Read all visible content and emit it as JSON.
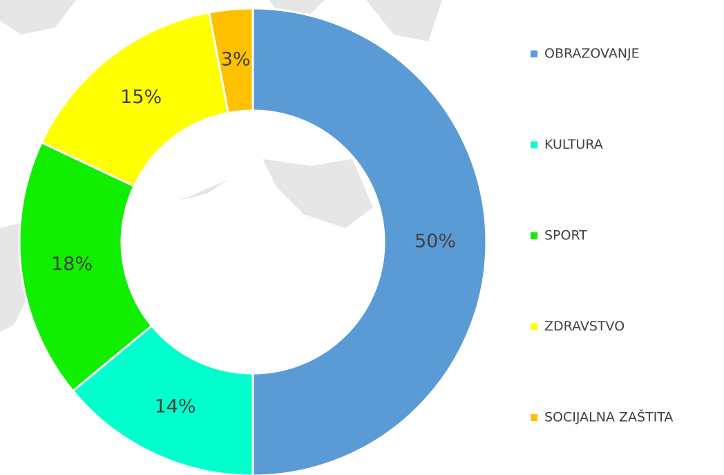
{
  "chart_data": {
    "type": "donut",
    "categories": [
      "OBRAZOVANJE",
      "KULTURA",
      "SPORT",
      "ZDRAVSTVO",
      "SOCIJALNA ZAŠTITA"
    ],
    "values": [
      50,
      14,
      18,
      15,
      3
    ],
    "value_labels": [
      "50%",
      "14%",
      "18%",
      "15%",
      "3%"
    ],
    "colors": [
      "#5b9bd5",
      "#00ffcc",
      "#11ee00",
      "#ffff00",
      "#ffc000"
    ],
    "legend": "right"
  }
}
